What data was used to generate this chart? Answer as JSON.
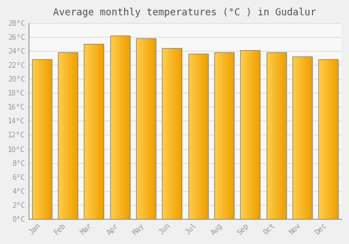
{
  "title": "Average monthly temperatures (°C ) in Gudalur",
  "months": [
    "Jan",
    "Feb",
    "Mar",
    "Apr",
    "May",
    "Jun",
    "Jul",
    "Aug",
    "Sep",
    "Oct",
    "Nov",
    "Dec"
  ],
  "temperatures": [
    22.8,
    23.8,
    25.0,
    26.2,
    25.8,
    24.4,
    23.6,
    23.8,
    24.1,
    23.8,
    23.2,
    22.8
  ],
  "bar_color_left": "#FFD050",
  "bar_color_right": "#F0A000",
  "bar_edge_color": "#888888",
  "ylim": [
    0,
    28
  ],
  "yticks": [
    0,
    2,
    4,
    6,
    8,
    10,
    12,
    14,
    16,
    18,
    20,
    22,
    24,
    26,
    28
  ],
  "background_color": "#f0f0f0",
  "plot_bg_color": "#f8f8f8",
  "grid_color": "#dddddd",
  "tick_label_color": "#999999",
  "title_color": "#555555",
  "title_fontsize": 10,
  "tick_fontsize": 7.5,
  "font_family": "monospace",
  "bar_width": 0.75
}
